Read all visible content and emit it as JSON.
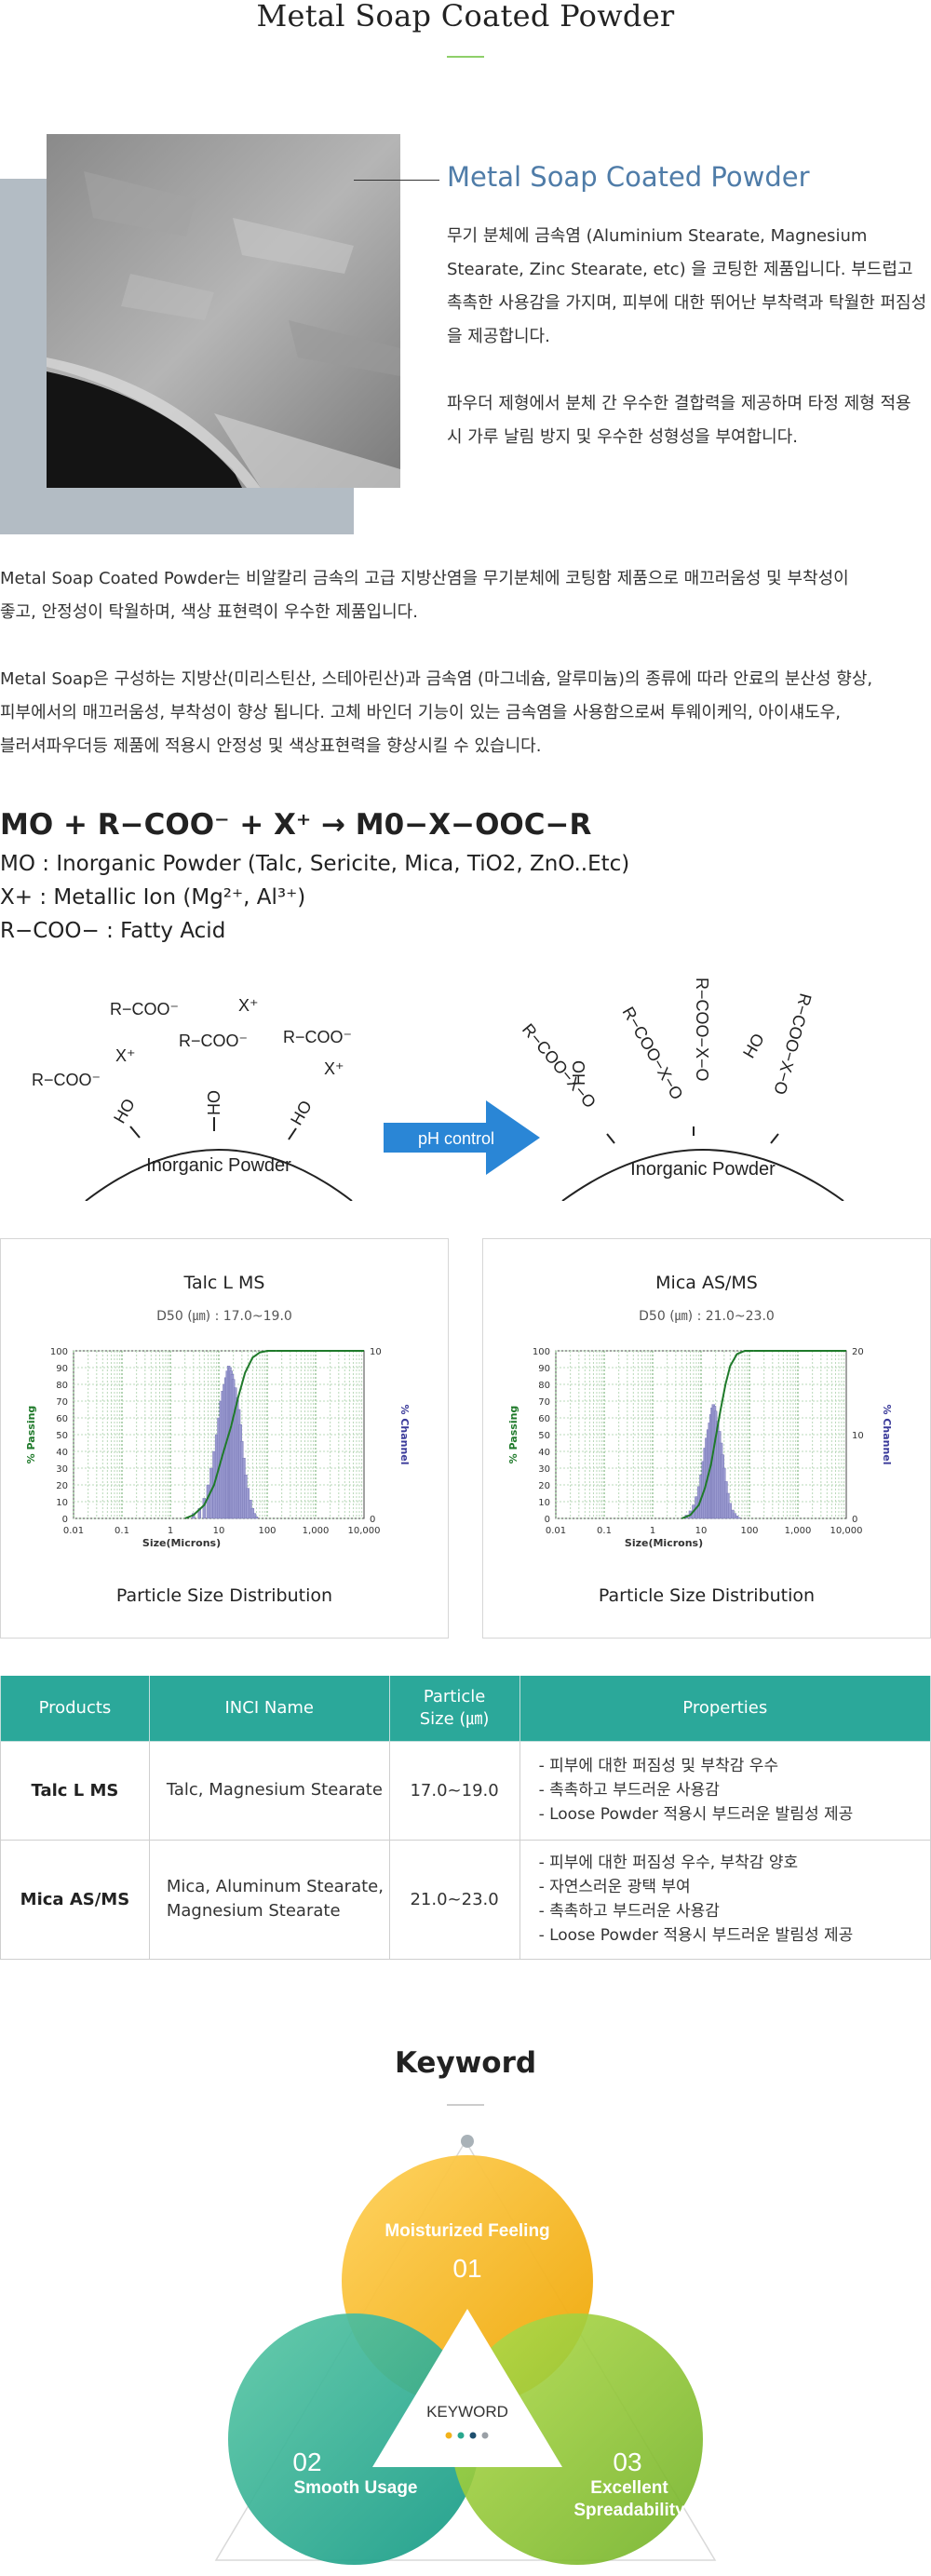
{
  "header": {
    "title": "Metal Soap Coated Powder"
  },
  "intro": {
    "heading": "Metal Soap Coated Powder",
    "p1": "무기 분체에 금속염 (Aluminium Stearate, Magnesium Stearate, Zinc Stearate, etc) 을 코팅한 제품입니다. 부드럽고 촉촉한 사용감을 가지며, 피부에 대한 뛰어난 부착력과 탁월한 퍼짐성을 제공합니다.",
    "p2": "파우더 제형에서 분체 간 우수한 결합력을 제공하며 타정 제형 적용 시 가루 날림 방지 및 우수한 성형성을 부여합니다."
  },
  "body": {
    "p1": " Metal Soap Coated Powder는 비알칼리 금속의 고급 지방산염을 무기분체에 코팅함 제품으로 매끄러움성 및 부착성이\n좋고,  안정성이 탁월하며, 색상 표현력이 우수한 제품입니다.",
    "p2": " Metal Soap은 구성하는 지방산(미리스틴산, 스테아린산)과 금속염 (마그네슘, 알루미늄)의 종류에 따라 안료의 분산성 향상,\n피부에서의 매끄러움성, 부착성이 향상 됩니다. 고체 바인더 기능이 있는 금속염을 사용함으로써 투웨이케익, 아이섀도우,\n블러셔파우더등 제품에 적용시 안정성 및 색상표현력을 향상시킬 수 있습니다."
  },
  "formula": {
    "equation": "MO + R−COO⁻ + X⁺ → M0−X−OOC−R",
    "mo": "MO : Inorganic Powder (Talc, Sericite, Mica, TiO2, ZnO..Etc)",
    "x": "X+ : Metallic Ion (Mg²⁺, Al³⁺)",
    "r": "R−COO− : Fatty Acid"
  },
  "diagram": {
    "left_label": "Inorganic Powder",
    "right_label": "Inorganic Powder",
    "arrow_label": "pH control",
    "arrow_color": "#2a86d6",
    "left_groups": [
      "R−COO⁻",
      "X⁺",
      "R−COO⁻",
      "X⁺",
      "R−COO⁻",
      "R−COO⁻",
      "X⁺",
      "HO",
      "HO",
      "HO"
    ],
    "right_groups": [
      "R−COO−X−O",
      "R−COO−X−O",
      "R−COO−X−O",
      "R−COO−X−O",
      "HO",
      "HO"
    ]
  },
  "chart_data": [
    {
      "type": "line",
      "title": "Talc L MS",
      "subtitle": "D50 (㎛) : 17.0~19.0",
      "footer": "Particle Size Distribution",
      "xlabel": "Size(Microns)",
      "ylabel_left": "% Passing",
      "ylabel_right": "% Channel",
      "x_ticks": [
        "0.01",
        "0.1",
        "1",
        "10",
        "100",
        "1,000",
        "10,000"
      ],
      "y_ticks_left": [
        0,
        10,
        20,
        30,
        40,
        50,
        60,
        70,
        80,
        90,
        100
      ],
      "y_ticks_right": [
        0,
        10
      ],
      "ylim_right": [
        0,
        10
      ],
      "x_scale": "log",
      "hist_x": [
        3,
        4,
        5,
        6,
        7,
        8,
        9,
        10,
        11,
        12,
        13,
        14,
        15,
        16,
        17,
        18,
        19,
        20,
        22,
        24,
        26,
        28,
        30,
        33,
        36,
        40,
        45,
        50,
        55,
        60
      ],
      "hist_y": [
        0.3,
        0.6,
        1.2,
        2.0,
        3.0,
        4.0,
        5.0,
        6.0,
        7.0,
        7.6,
        8.0,
        8.4,
        8.8,
        9.1,
        9.0,
        8.8,
        8.6,
        8.3,
        7.8,
        7.2,
        6.5,
        5.6,
        4.6,
        3.6,
        2.6,
        1.8,
        1.1,
        0.6,
        0.3,
        0.1
      ],
      "cum_x": [
        2,
        3,
        5,
        8,
        12,
        18,
        25,
        35,
        50,
        70,
        100,
        150
      ],
      "cum_y": [
        0,
        2,
        8,
        20,
        38,
        55,
        72,
        87,
        96,
        99,
        100,
        100
      ],
      "colors": {
        "hist": "#9a9ad0",
        "curve": "#1f7a2a"
      }
    },
    {
      "type": "line",
      "title": "Mica AS/MS",
      "subtitle": "D50 (㎛) : 21.0~23.0",
      "footer": "Particle Size Distribution",
      "xlabel": "Size(Microns)",
      "ylabel_left": "% Passing",
      "ylabel_right": "% Channel",
      "x_ticks": [
        "0.01",
        "0.1",
        "1",
        "10",
        "100",
        "1,000",
        "10,000"
      ],
      "y_ticks_left": [
        0,
        10,
        20,
        30,
        40,
        50,
        60,
        70,
        80,
        90,
        100
      ],
      "y_ticks_right": [
        0,
        10,
        20
      ],
      "ylim_right": [
        0,
        20
      ],
      "x_scale": "log",
      "hist_x": [
        5,
        6,
        7,
        8,
        9,
        10,
        11,
        12,
        13,
        14,
        15,
        16,
        17,
        18,
        19,
        20,
        22,
        24,
        26,
        28,
        30,
        33,
        36,
        40,
        45,
        50,
        55,
        60
      ],
      "hist_y": [
        0.4,
        0.9,
        1.6,
        2.6,
        3.8,
        5.2,
        6.8,
        8.4,
        9.6,
        10.6,
        11.4,
        12.4,
        13.2,
        13.6,
        13.4,
        12.8,
        11.6,
        10.4,
        9.0,
        7.6,
        6.0,
        4.4,
        3.0,
        1.8,
        1.0,
        0.6,
        0.3,
        0.1
      ],
      "cum_x": [
        4,
        6,
        9,
        12,
        16,
        20,
        25,
        32,
        40,
        55,
        80,
        120
      ],
      "cum_y": [
        0,
        2,
        8,
        18,
        32,
        48,
        64,
        80,
        91,
        98,
        100,
        100
      ],
      "colors": {
        "hist": "#9a9ad0",
        "curve": "#1f7a2a"
      }
    }
  ],
  "table": {
    "headers": [
      "Products",
      "INCI Name",
      "Particle Size (㎛)",
      "Properties"
    ],
    "rows": [
      {
        "product": "Talc L MS",
        "inci": "Talc, Magnesium Stearate",
        "size": "17.0~19.0",
        "properties": [
          "- 피부에 대한 퍼짐성 및 부착감 우수",
          "- 촉촉하고 부드러운 사용감",
          "- Loose Powder 적용시 부드러운 발림성 제공"
        ]
      },
      {
        "product": "Mica AS/MS",
        "inci": "Mica, Aluminum Stearate, Magnesium Stearate",
        "size": "21.0~23.0",
        "properties": [
          "- 피부에 대한 퍼짐성 우수, 부착감 양호",
          "- 자연스러운 광택 부여",
          "- 촉촉하고 부드러운 사용감",
          "- Loose Powder 적용시 부드러운 발림성 제공"
        ]
      }
    ],
    "header_color": "#2ba89a"
  },
  "keyword": {
    "title": "Keyword",
    "center_label": "KEYWORD",
    "items": [
      {
        "num": "01",
        "label": "Moisturized Feeling",
        "color": "#f2b21b"
      },
      {
        "num": "02",
        "label": "Smooth Usage",
        "color": "#2aa88e"
      },
      {
        "num": "03",
        "label": "Excellent Spreadability",
        "color": "#7bbf2a"
      }
    ],
    "dots": [
      "#f2b21b",
      "#2aa88e",
      "#1f4f6e",
      "#9aa0a6"
    ]
  }
}
